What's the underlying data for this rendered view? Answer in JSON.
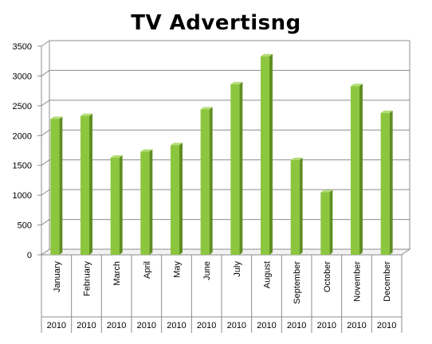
{
  "chart_data": {
    "type": "bar",
    "title": "TV Advertisng",
    "categories": [
      "January",
      "February",
      "March",
      "April",
      "May",
      "June",
      "July",
      "August",
      "September",
      "October",
      "November",
      "December"
    ],
    "sub_categories": [
      "2010",
      "2010",
      "2010",
      "2010",
      "2010",
      "2010",
      "2010",
      "2010",
      "2010",
      "2010",
      "2010",
      "2010"
    ],
    "values": [
      2280,
      2330,
      1630,
      1730,
      1840,
      2440,
      2860,
      3330,
      1590,
      1050,
      2830,
      2380
    ],
    "ylim": [
      0,
      3500
    ],
    "yticks": [
      0,
      500,
      1000,
      1500,
      2000,
      2500,
      3000,
      3500
    ],
    "grid": true,
    "legend": "none",
    "bar_color": "#8cc63e",
    "bar_side_color": "#5f8f22",
    "bar_top_color": "#b5dd79"
  }
}
